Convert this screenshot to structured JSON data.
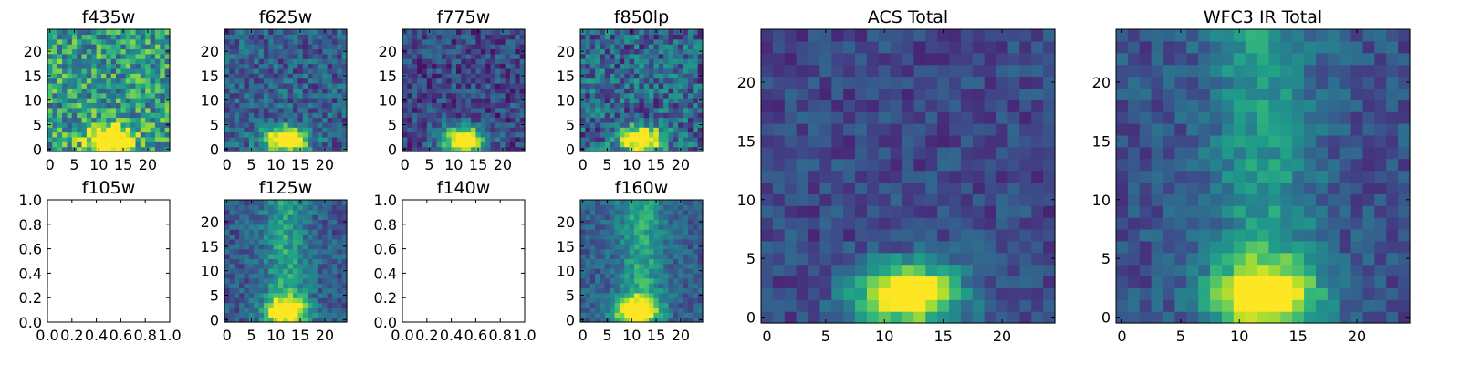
{
  "chart_data": [
    {
      "type": "heatmap",
      "title": "f435w",
      "xlim": [
        0,
        24
      ],
      "ylim": [
        0,
        24
      ],
      "xticks": [
        "0",
        "5",
        "10",
        "15",
        "20"
      ],
      "yticks": [
        "0",
        "5",
        "10",
        "15",
        "20"
      ],
      "grid": false,
      "colormap": "viridis",
      "source_peak": [
        12,
        2
      ],
      "background_level": 0.55,
      "noise": 0.3
    },
    {
      "type": "heatmap",
      "title": "f625w",
      "xlim": [
        0,
        24
      ],
      "ylim": [
        0,
        24
      ],
      "xticks": [
        "0",
        "5",
        "10",
        "15",
        "20"
      ],
      "yticks": [
        "0",
        "5",
        "10",
        "15",
        "20"
      ],
      "grid": false,
      "colormap": "viridis",
      "source_peak": [
        12,
        2
      ],
      "background_level": 0.3,
      "noise": 0.2
    },
    {
      "type": "heatmap",
      "title": "f775w",
      "xlim": [
        0,
        24
      ],
      "ylim": [
        0,
        24
      ],
      "xticks": [
        "0",
        "5",
        "10",
        "15",
        "20"
      ],
      "yticks": [
        "0",
        "5",
        "10",
        "15",
        "20"
      ],
      "grid": false,
      "colormap": "viridis",
      "source_peak": [
        12,
        2
      ],
      "background_level": 0.22,
      "noise": 0.18
    },
    {
      "type": "heatmap",
      "title": "f850lp",
      "xlim": [
        0,
        24
      ],
      "ylim": [
        0,
        24
      ],
      "xticks": [
        "0",
        "5",
        "10",
        "15",
        "20"
      ],
      "yticks": [
        "0",
        "5",
        "10",
        "15",
        "20"
      ],
      "grid": false,
      "colormap": "viridis",
      "source_peak": [
        12,
        2
      ],
      "background_level": 0.32,
      "noise": 0.25
    },
    {
      "type": "empty",
      "title": "f105w",
      "xlim": [
        0,
        1
      ],
      "ylim": [
        0,
        1
      ],
      "xticks": [
        "0.0",
        "0.2",
        "0.4",
        "0.6",
        "0.8",
        "1.0"
      ],
      "yticks": [
        "0.0",
        "0.2",
        "0.4",
        "0.6",
        "0.8",
        "1.0"
      ],
      "grid": false
    },
    {
      "type": "heatmap",
      "title": "f125w",
      "xlim": [
        0,
        24
      ],
      "ylim": [
        0,
        24
      ],
      "xticks": [
        "0",
        "5",
        "10",
        "15",
        "20"
      ],
      "yticks": [
        "0",
        "5",
        "10",
        "15",
        "20"
      ],
      "grid": false,
      "colormap": "viridis",
      "source_peak": [
        12,
        2
      ],
      "background_level": 0.28,
      "noise": 0.15,
      "vertical_band": true
    },
    {
      "type": "empty",
      "title": "f140w",
      "xlim": [
        0,
        1
      ],
      "ylim": [
        0,
        1
      ],
      "xticks": [
        "0.0",
        "0.2",
        "0.4",
        "0.6",
        "0.8",
        "1.0"
      ],
      "yticks": [
        "0.0",
        "0.2",
        "0.4",
        "0.6",
        "0.8",
        "1.0"
      ],
      "grid": false
    },
    {
      "type": "heatmap",
      "title": "f160w",
      "xlim": [
        0,
        24
      ],
      "ylim": [
        0,
        24
      ],
      "xticks": [
        "0",
        "5",
        "10",
        "15",
        "20"
      ],
      "yticks": [
        "0",
        "5",
        "10",
        "15",
        "20"
      ],
      "grid": false,
      "colormap": "viridis",
      "source_peak": [
        11,
        2
      ],
      "background_level": 0.3,
      "noise": 0.13,
      "vertical_band": true
    },
    {
      "type": "heatmap",
      "title": "ACS Total",
      "xlim": [
        0,
        24
      ],
      "ylim": [
        0,
        24
      ],
      "xticks": [
        "0",
        "5",
        "10",
        "15",
        "20"
      ],
      "yticks": [
        "0",
        "5",
        "10",
        "15",
        "20"
      ],
      "grid": false,
      "colormap": "viridis",
      "source_peak": [
        12,
        2
      ],
      "background_level": 0.22,
      "noise": 0.12
    },
    {
      "type": "heatmap",
      "title": "WFC3 IR Total",
      "xlim": [
        0,
        24
      ],
      "ylim": [
        0,
        24
      ],
      "xticks": [
        "0",
        "5",
        "10",
        "15",
        "20"
      ],
      "yticks": [
        "0",
        "5",
        "10",
        "15",
        "20"
      ],
      "grid": false,
      "colormap": "viridis",
      "source_peak": [
        12,
        2
      ],
      "background_level": 0.25,
      "noise": 0.12,
      "vertical_band": true
    }
  ]
}
